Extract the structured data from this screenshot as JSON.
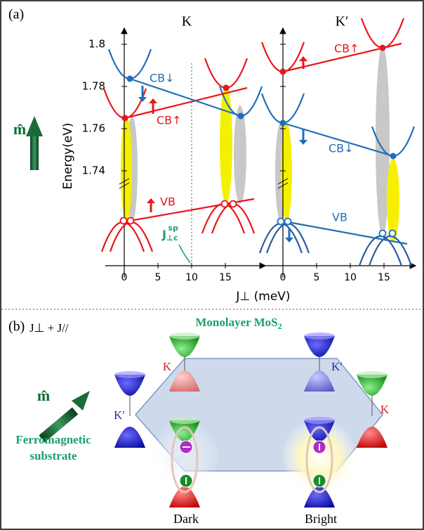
{
  "panel_a": {
    "label": "(a)",
    "valley_left": "K",
    "valley_right": "K′",
    "y_axis_label": "Energy(eV)",
    "yticks": [
      1.8,
      1.78,
      1.76,
      1.74
    ],
    "xticks_left": [
      0,
      5,
      10,
      15
    ],
    "xticks_right": [
      0,
      5,
      10,
      15
    ],
    "x_axis_label": "J⊥ (meV)",
    "magnetization": "m̂",
    "cb_down_left": "CB↓",
    "cb_up_left": "CB↑",
    "vb_left": "VB",
    "cb_up_right": "CB↑",
    "cb_down_right": "CB↓",
    "vb_right": "VB",
    "critical": {
      "main": "J",
      "sub": "⊥c",
      "sup": "sp"
    }
  },
  "panel_b": {
    "label": "(b)",
    "coupling": "J⊥ + J//",
    "material": {
      "main": "Monolayer MoS",
      "sub": "2"
    },
    "valleys": [
      "K",
      "K′",
      "K′",
      "K"
    ],
    "magnetization": "m̂",
    "substrate": [
      "Ferromagnetic",
      "substrate"
    ],
    "states": [
      "Dark",
      "Bright"
    ]
  }
}
